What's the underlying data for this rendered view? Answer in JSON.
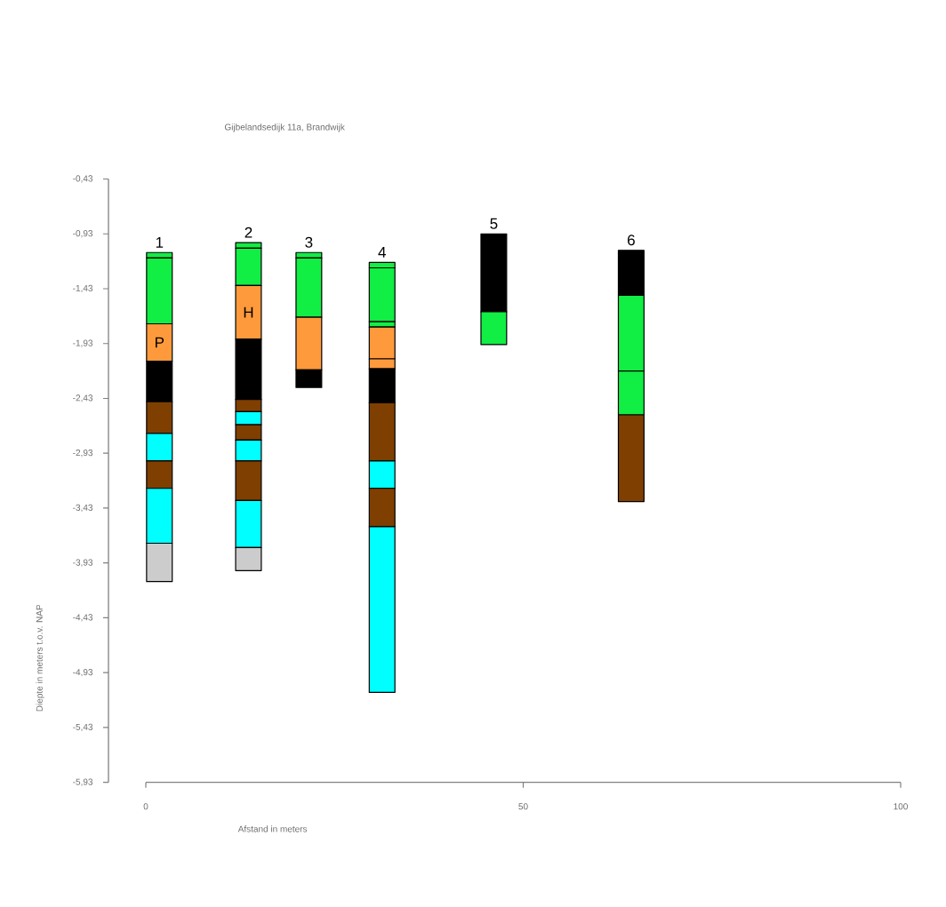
{
  "chart_data": {
    "type": "bar",
    "title": "Gijbelandsedijk 11a, Brandwijk",
    "xlabel": "Afstand in meters",
    "ylabel": "Diepte in meters t.o.v. NAP",
    "x": [
      1.8,
      13.6,
      21.6,
      31.3,
      46.1,
      64.3
    ],
    "series": [
      {
        "base": [
          -1.1,
          -1.01,
          -1.1,
          -1.19,
          -0.93,
          -1.08
        ],
        "values": [
          -0.05,
          -0.05,
          -0.05,
          -0.05,
          -0.71,
          -0.41
        ],
        "colors": [
          "#11ee44",
          "#11ee44",
          "#11ee44",
          "#11ee44",
          "#000000",
          "#000000"
        ]
      },
      {
        "base": [
          -1.15,
          -1.06,
          -1.15,
          -1.24,
          -1.64,
          -1.49
        ],
        "values": [
          -0.6,
          -0.34,
          -0.54,
          -0.49,
          -0.3,
          -0.69
        ],
        "colors": [
          "#11ee44",
          "#11ee44",
          "#11ee44",
          "#11ee44",
          "#11ee44",
          "#11ee44"
        ]
      },
      {
        "base": [
          -1.75,
          -1.4,
          -1.69,
          -1.73,
          null,
          -2.18
        ],
        "values": [
          -0.34,
          -0.49,
          -0.48,
          -0.05,
          null,
          -0.4
        ],
        "colors": [
          "#ff9a3c",
          "#ff9a3c",
          "#ff9a3c",
          "#11ee44",
          null,
          "#11ee44"
        ]
      },
      {
        "base": [
          -2.09,
          -1.89,
          -2.17,
          -1.78,
          null,
          -2.58
        ],
        "values": [
          -0.37,
          -0.55,
          -0.16,
          -0.29,
          null,
          -0.79
        ],
        "colors": [
          "#000000",
          "#000000",
          "#000000",
          "#ff9a3c",
          null,
          "#7f3f00"
        ]
      },
      {
        "base": [
          -2.46,
          -2.44,
          null,
          -2.07,
          null,
          null
        ],
        "values": [
          -0.29,
          -0.11,
          null,
          -0.09,
          null,
          null
        ],
        "colors": [
          "#7f3f00",
          "#7f3f00",
          null,
          "#ff9a3c",
          null,
          null
        ]
      },
      {
        "base": [
          -2.75,
          -2.55,
          null,
          -2.16,
          null,
          null
        ],
        "values": [
          -0.25,
          -0.12,
          null,
          -0.31,
          null,
          null
        ],
        "colors": [
          "#00ffff",
          "#00ffff",
          null,
          "#000000",
          null,
          null
        ]
      },
      {
        "base": [
          -3.0,
          -2.67,
          null,
          -2.47,
          null,
          null
        ],
        "values": [
          -0.25,
          -0.14,
          null,
          -0.53,
          null,
          null
        ],
        "colors": [
          "#7f3f00",
          "#7f3f00",
          null,
          "#7f3f00",
          null,
          null
        ]
      },
      {
        "base": [
          -3.25,
          -2.81,
          null,
          -3.0,
          null,
          null
        ],
        "values": [
          -0.5,
          -0.19,
          null,
          -0.25,
          null,
          null
        ],
        "colors": [
          "#00ffff",
          "#00ffff",
          null,
          "#00ffff",
          null,
          null
        ]
      },
      {
        "base": [
          -3.75,
          -3.0,
          null,
          -3.25,
          null,
          null
        ],
        "values": [
          -0.35,
          -0.36,
          null,
          -0.35,
          null,
          null
        ],
        "colors": [
          "#cccccc",
          "#7f3f00",
          null,
          "#7f3f00",
          null,
          null
        ]
      },
      {
        "base": [
          null,
          -3.36,
          null,
          -3.6,
          null,
          null
        ],
        "values": [
          null,
          -0.43,
          null,
          -1.51,
          null,
          null
        ],
        "colors": [
          null,
          "#00ffff",
          null,
          "#00ffff",
          null,
          null
        ]
      },
      {
        "base": [
          null,
          -3.79,
          null,
          null,
          null,
          null
        ],
        "values": [
          null,
          -0.21,
          null,
          null,
          null,
          null
        ],
        "colors": [
          null,
          "#cccccc",
          null,
          null,
          null,
          null
        ]
      }
    ],
    "xlim": [
      0,
      100
    ],
    "xticks": [
      0,
      50,
      100
    ],
    "ylim": [
      -5.93,
      -0.43
    ],
    "yticks": [
      {
        "value": -0.43,
        "label": "-0,43"
      },
      {
        "value": -0.93,
        "label": "-0,93"
      },
      {
        "value": -1.43,
        "label": "-1,43"
      },
      {
        "value": -1.93,
        "label": "-1,93"
      },
      {
        "value": -2.43,
        "label": "-2,43"
      },
      {
        "value": -2.93,
        "label": "-2,93"
      },
      {
        "value": -3.43,
        "label": "-3,43"
      },
      {
        "value": -3.93,
        "label": "-3,93"
      },
      {
        "value": -4.43,
        "label": "-4,43"
      },
      {
        "value": -4.93,
        "label": "-4,93"
      },
      {
        "value": -5.43,
        "label": "-5,43"
      },
      {
        "value": -5.93,
        "label": "-5,93"
      }
    ],
    "annotations": [
      {
        "text": "1",
        "x": 1.8,
        "y": -1.1
      },
      {
        "text": "2",
        "x": 13.6,
        "y": -1.01
      },
      {
        "text": "3",
        "x": 21.6,
        "y": -1.1
      },
      {
        "text": "4",
        "x": 31.3,
        "y": -1.19
      },
      {
        "text": "5",
        "x": 46.1,
        "y": -0.93
      },
      {
        "text": "6",
        "x": 64.3,
        "y": -1.08
      },
      {
        "text": "P",
        "x": 1.8,
        "y": -1.75
      },
      {
        "text": "H",
        "x": 13.6,
        "y": -1.4
      }
    ]
  }
}
